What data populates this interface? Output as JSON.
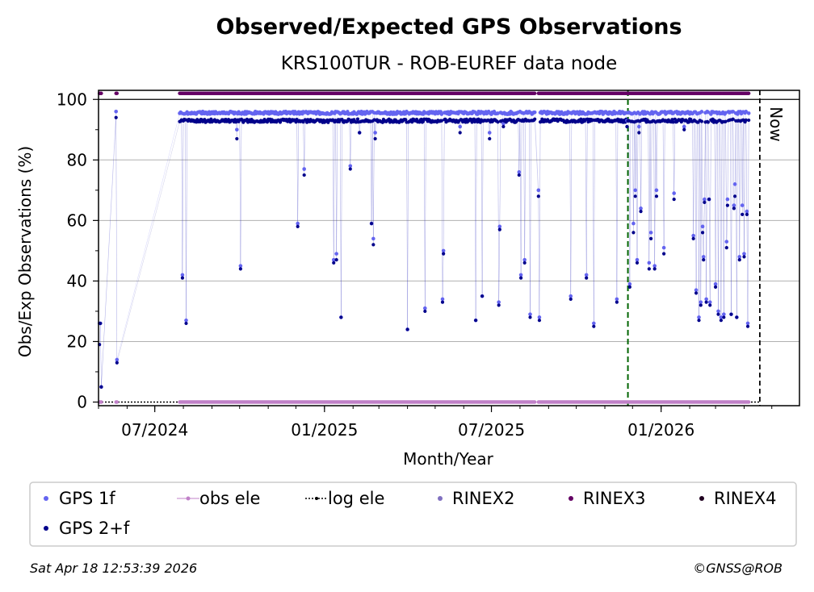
{
  "chart_data": {
    "type": "scatter",
    "title": "Observed/Expected GPS Observations",
    "subtitle": "KRS100TUR - ROB-EUREF data node",
    "xlabel": "Month/Year",
    "ylabel": "Obs/Exp Observations (%)",
    "x_ticks": [
      "07/2024",
      "01/2025",
      "07/2025",
      "01/2026"
    ],
    "y_ticks": [
      "0",
      "20",
      "40",
      "60",
      "80",
      "100"
    ],
    "ylim": [
      0,
      103
    ],
    "x_start": "2024-05-01",
    "x_end": "2026-05-31",
    "grid": "horizontal",
    "now_label": "Now",
    "now_date": "2026-04-18",
    "event_line_date": "2025-11-26",
    "colors": {
      "gps1f": "#6464f0",
      "gps2f": "#00008b",
      "obs_ele": "#c080c8",
      "log_ele": "#000000",
      "rinex2": "#8070c0",
      "rinex3": "#640064",
      "rinex4": "#200020",
      "grid": "#b0b0b0",
      "event_line": "#006400"
    },
    "series": [
      {
        "name": "GPS 1f",
        "key": "gps1f"
      },
      {
        "name": "GPS 2+f",
        "key": "gps2f"
      },
      {
        "name": "obs ele",
        "key": "obs_ele"
      },
      {
        "name": "log ele",
        "key": "log_ele"
      },
      {
        "name": "RINEX2",
        "key": "rinex2"
      },
      {
        "name": "RINEX3",
        "key": "rinex3"
      },
      {
        "name": "RINEX4",
        "key": "rinex4"
      }
    ],
    "gps_outliers": [
      [
        "2024-05-02",
        19,
        26
      ],
      [
        "2024-05-03",
        26,
        26
      ],
      [
        "2024-05-04",
        5,
        5
      ],
      [
        "2024-05-20",
        94,
        96
      ],
      [
        "2024-05-21",
        13,
        14
      ],
      [
        "2024-07-31",
        41,
        42
      ],
      [
        "2024-08-04",
        26,
        27
      ],
      [
        "2024-09-28",
        87,
        90
      ],
      [
        "2024-10-02",
        44,
        45
      ],
      [
        "2024-12-03",
        58,
        59
      ],
      [
        "2024-12-10",
        75,
        77
      ],
      [
        "2025-01-11",
        46,
        47
      ],
      [
        "2025-01-14",
        47,
        49
      ],
      [
        "2025-01-19",
        28,
        28
      ],
      [
        "2025-01-29",
        77,
        78
      ],
      [
        "2025-02-08",
        89,
        89
      ],
      [
        "2025-02-21",
        59,
        59
      ],
      [
        "2025-02-23",
        52,
        54
      ],
      [
        "2025-02-25",
        87,
        89
      ],
      [
        "2025-04-01",
        24,
        24
      ],
      [
        "2025-04-20",
        30,
        31
      ],
      [
        "2025-05-09",
        33,
        34
      ],
      [
        "2025-05-10",
        49,
        50
      ],
      [
        "2025-05-28",
        89,
        91
      ],
      [
        "2025-06-14",
        27,
        27
      ],
      [
        "2025-06-21",
        35,
        35
      ],
      [
        "2025-06-29",
        87,
        89
      ],
      [
        "2025-07-09",
        32,
        33
      ],
      [
        "2025-07-10",
        57,
        58
      ],
      [
        "2025-07-14",
        91,
        92
      ],
      [
        "2025-07-31",
        75,
        76
      ],
      [
        "2025-08-02",
        41,
        42
      ],
      [
        "2025-08-06",
        46,
        47
      ],
      [
        "2025-08-12",
        28,
        29
      ],
      [
        "2025-08-21",
        68,
        70
      ],
      [
        "2025-08-22",
        27,
        28
      ],
      [
        "2025-09-25",
        34,
        35
      ],
      [
        "2025-10-12",
        41,
        42
      ],
      [
        "2025-10-20",
        25,
        26
      ],
      [
        "2025-11-14",
        33,
        34
      ],
      [
        "2025-11-25",
        91,
        93
      ],
      [
        "2025-11-28",
        38,
        39
      ],
      [
        "2025-12-02",
        56,
        59
      ],
      [
        "2025-12-04",
        68,
        70
      ],
      [
        "2025-12-06",
        46,
        47
      ],
      [
        "2025-12-08",
        89,
        91
      ],
      [
        "2025-12-10",
        63,
        64
      ],
      [
        "2025-12-19",
        44,
        46
      ],
      [
        "2025-12-21",
        54,
        56
      ],
      [
        "2025-12-25",
        44,
        45
      ],
      [
        "2025-12-27",
        68,
        70
      ],
      [
        "2026-01-04",
        49,
        51
      ],
      [
        "2026-01-15",
        67,
        69
      ],
      [
        "2026-01-26",
        90,
        91
      ],
      [
        "2026-02-05",
        54,
        55
      ],
      [
        "2026-02-08",
        36,
        37
      ],
      [
        "2026-02-11",
        27,
        28
      ],
      [
        "2026-02-13",
        32,
        33
      ],
      [
        "2026-02-15",
        56,
        58
      ],
      [
        "2026-02-16",
        47,
        48
      ],
      [
        "2026-02-17",
        66,
        67
      ],
      [
        "2026-02-19",
        33,
        34
      ],
      [
        "2026-02-22",
        67,
        67
      ],
      [
        "2026-02-23",
        32,
        33
      ],
      [
        "2026-03-01",
        38,
        39
      ],
      [
        "2026-03-04",
        29,
        30
      ],
      [
        "2026-03-07",
        27,
        28
      ],
      [
        "2026-03-10",
        28,
        29
      ],
      [
        "2026-03-13",
        51,
        53
      ],
      [
        "2026-03-14",
        65,
        67
      ],
      [
        "2026-03-18",
        29,
        29
      ],
      [
        "2026-03-21",
        64,
        65
      ],
      [
        "2026-03-22",
        68,
        72
      ],
      [
        "2026-03-24",
        28,
        28
      ],
      [
        "2026-03-27",
        47,
        48
      ],
      [
        "2026-03-30",
        62,
        65
      ],
      [
        "2026-04-01",
        48,
        49
      ],
      [
        "2026-04-04",
        62,
        63
      ],
      [
        "2026-04-05",
        25,
        26
      ]
    ],
    "gps_nominal": {
      "gps1f": 96,
      "gps2f": 93.5
    },
    "data_gaps": [
      [
        "2024-05-24",
        "2024-07-27"
      ],
      [
        "2025-08-18",
        "2025-08-20"
      ]
    ],
    "data_end": "2026-04-06",
    "rinex3_level": 102,
    "obs_ele_level": 0
  },
  "legend": {
    "gps1f": "GPS 1f",
    "gps2f": "GPS 2+f",
    "obs_ele": "obs ele",
    "log_ele": "log ele",
    "rinex2": "RINEX2",
    "rinex3": "RINEX3",
    "rinex4": "RINEX4"
  },
  "footer": {
    "timestamp": "Sat Apr 18 12:53:39 2026",
    "credit": "©GNSS@ROB"
  }
}
